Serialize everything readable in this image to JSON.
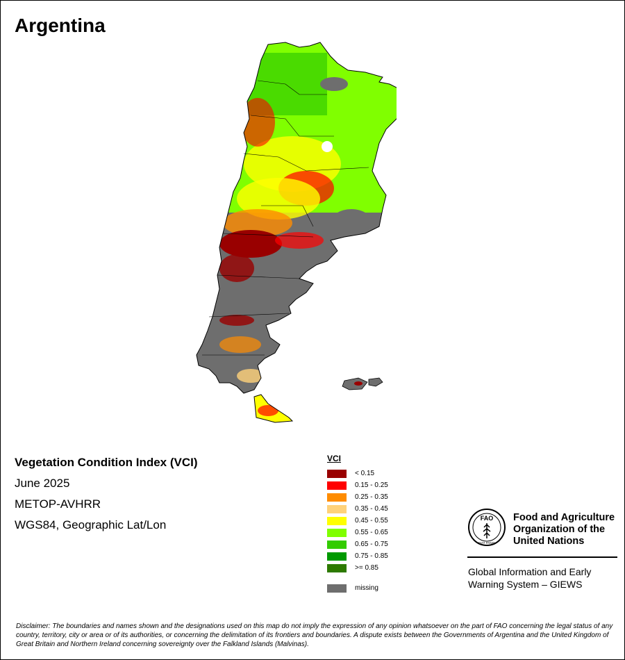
{
  "map": {
    "title": "Argentina",
    "info_lines": {
      "index_name": "Vegetation Condition Index (VCI)",
      "period": "June 2025",
      "sensor": "METOP-AVHRR",
      "projection": "WGS84, Geographic Lat/Lon"
    }
  },
  "legend": {
    "title": "VCI",
    "classes": [
      {
        "label": "< 0.15",
        "color": "#990000"
      },
      {
        "label": "0.15 - 0.25",
        "color": "#ff0000"
      },
      {
        "label": "0.25 - 0.35",
        "color": "#ff8c00"
      },
      {
        "label": "0.35 - 0.45",
        "color": "#ffd27a"
      },
      {
        "label": "0.45 - 0.55",
        "color": "#ffff00"
      },
      {
        "label": "0.55 - 0.65",
        "color": "#80ff00"
      },
      {
        "label": "0.65 - 0.75",
        "color": "#33cc00"
      },
      {
        "label": "0.75 - 0.85",
        "color": "#009900"
      },
      {
        "label": ">= 0.85",
        "color": "#2d7a00"
      }
    ],
    "missing": {
      "label": "missing",
      "color": "#6e6e6e"
    }
  },
  "org": {
    "name_line1": "Food and Agriculture",
    "name_line2": "Organization of the",
    "name_line3": "United Nations",
    "system_line1": "Global Information and Early",
    "system_line2": "Warning System – GIEWS",
    "logo_letters": "FAO",
    "logo_motto": "FIAT PANIS"
  },
  "disclaimer": "Disclaimer: The boundaries and names shown and the designations used on this map do not imply the expression of any opinion whatsoever on the part of FAO concerning the legal status of any country, territory, city or area or of its authorities, or concerning the delimitation of its frontiers and boundaries. A dispute exists between the Governments of Argentina and the United Kingdom of Great Britain and Northern Ireland concerning sovereignty over the Falkland Islands (Malvinas)."
}
